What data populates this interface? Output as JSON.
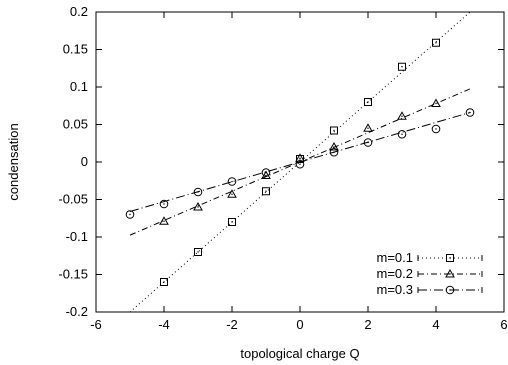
{
  "chart_data": {
    "type": "scatter",
    "xlabel": "topological charge Q",
    "ylabel": "condensation",
    "xlim": [
      -6,
      6
    ],
    "ylim": [
      -0.2,
      0.2
    ],
    "x_ticks": [
      "-6",
      "-4",
      "-2",
      "0",
      "2",
      "4",
      "6"
    ],
    "y_ticks": [
      "-0.2",
      "-0.15",
      "-0.1",
      "-0.05",
      "0",
      "0.05",
      "0.1",
      "0.15",
      "0.2"
    ],
    "grid": false,
    "legend_position": "bottom-right",
    "series": [
      {
        "name": "m=0.1",
        "marker": "square",
        "line_style": "dotted",
        "fit_slope": 0.04,
        "fit_range": [
          -5,
          5
        ],
        "points": [
          {
            "x": -4,
            "y": -0.16
          },
          {
            "x": -3,
            "y": -0.12
          },
          {
            "x": -2,
            "y": -0.08
          },
          {
            "x": -1,
            "y": -0.039
          },
          {
            "x": 0,
            "y": 0.004
          },
          {
            "x": 1,
            "y": 0.042
          },
          {
            "x": 2,
            "y": 0.08
          },
          {
            "x": 3,
            "y": 0.127
          },
          {
            "x": 4,
            "y": 0.159
          }
        ]
      },
      {
        "name": "m=0.2",
        "marker": "triangle",
        "line_style": "dash-dot",
        "fit_slope": 0.0195,
        "fit_range": [
          -5,
          5
        ],
        "points": [
          {
            "x": -4,
            "y": -0.079
          },
          {
            "x": -3,
            "y": -0.06
          },
          {
            "x": -2,
            "y": -0.043
          },
          {
            "x": -1,
            "y": -0.018
          },
          {
            "x": 0,
            "y": 0.005
          },
          {
            "x": 1,
            "y": 0.02
          },
          {
            "x": 2,
            "y": 0.045
          },
          {
            "x": 3,
            "y": 0.061
          },
          {
            "x": 4,
            "y": 0.078
          }
        ]
      },
      {
        "name": "m=0.3",
        "marker": "circle",
        "line_style": "dash-dot-long",
        "fit_slope": 0.0132,
        "fit_range": [
          -5,
          5
        ],
        "points": [
          {
            "x": -5,
            "y": -0.07
          },
          {
            "x": -4,
            "y": -0.056
          },
          {
            "x": -3,
            "y": -0.04
          },
          {
            "x": -2,
            "y": -0.026
          },
          {
            "x": -1,
            "y": -0.014
          },
          {
            "x": 0,
            "y": -0.003
          },
          {
            "x": 1,
            "y": 0.013
          },
          {
            "x": 2,
            "y": 0.026
          },
          {
            "x": 3,
            "y": 0.037
          },
          {
            "x": 4,
            "y": 0.044
          },
          {
            "x": 5,
            "y": 0.066
          }
        ]
      }
    ]
  }
}
